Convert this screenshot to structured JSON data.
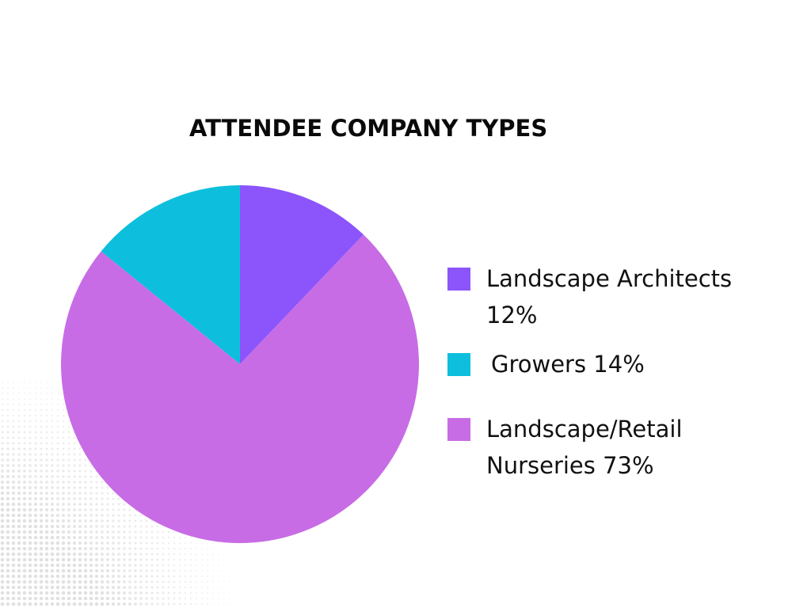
{
  "chart_data": {
    "type": "pie",
    "title": "ATTENDEE COMPANY TYPES",
    "slices": [
      {
        "label": "Landscape Architects\n12%",
        "value": 12,
        "color": "#8b55fb"
      },
      {
        "label": "Growers 14%",
        "value": 14,
        "color": "#0dbfdc"
      },
      {
        "label": "Landscape/Retail\nNurseries 73%",
        "value": 73,
        "color": "#c76ce5"
      }
    ],
    "legend_position": "right"
  }
}
